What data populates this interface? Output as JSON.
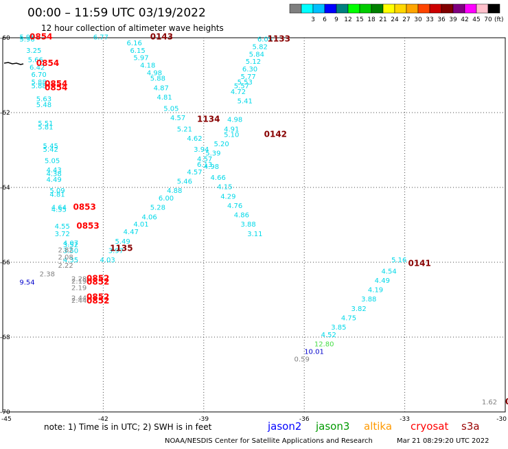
{
  "title": "00:00 – 11:59 UTC 03/19/2022",
  "subtitle": "12 hour collection of altimeter wave heights",
  "color_scale": {
    "unit": "(ft)",
    "swatches": [
      {
        "label": "",
        "color": "#7f7f7f"
      },
      {
        "label": "3",
        "color": "#00ffff"
      },
      {
        "label": "6",
        "color": "#00bfff"
      },
      {
        "label": "9",
        "color": "#0000ff"
      },
      {
        "label": "12",
        "color": "#008080"
      },
      {
        "label": "15",
        "color": "#00ff00"
      },
      {
        "label": "18",
        "color": "#00cc00"
      },
      {
        "label": "21",
        "color": "#008000"
      },
      {
        "label": "24",
        "color": "#ffff00"
      },
      {
        "label": "27",
        "color": "#ffd700"
      },
      {
        "label": "30",
        "color": "#ffa500"
      },
      {
        "label": "33",
        "color": "#ff4500"
      },
      {
        "label": "36",
        "color": "#cc0000"
      },
      {
        "label": "39",
        "color": "#800000"
      },
      {
        "label": "42",
        "color": "#800080"
      },
      {
        "label": "45",
        "color": "#ff00ff"
      },
      {
        "label": "70",
        "color": "#ffc0cb"
      },
      {
        "label": "",
        "color": "#000000"
      }
    ]
  },
  "axes": {
    "lon_ticks": [
      "-45",
      "-42",
      "-39",
      "-36",
      "-33",
      "-30"
    ],
    "lat_ticks": [
      "-60",
      "-62",
      "-64",
      "-66",
      "-68",
      "-70"
    ],
    "lon_range": [
      -45,
      -30
    ],
    "lat_range": [
      -70,
      -60
    ],
    "grid": true
  },
  "map": {
    "observations": [
      {
        "lon": -44.5,
        "lat": -60.05,
        "text": "5.96",
        "color": "#00d8e8"
      },
      {
        "lon": -44.5,
        "lat": -60.1,
        "text": "5.96",
        "color": "#00d8e8"
      },
      {
        "lon": -44.3,
        "lat": -60.4,
        "text": "3.25",
        "color": "#00d8e8"
      },
      {
        "lon": -44.25,
        "lat": -60.65,
        "text": "5.66",
        "color": "#00d8e8"
      },
      {
        "lon": -44.2,
        "lat": -60.85,
        "text": "6.42",
        "color": "#00d8e8"
      },
      {
        "lon": -44.15,
        "lat": -61.05,
        "text": "6.70",
        "color": "#00d8e8"
      },
      {
        "lon": -44.15,
        "lat": -61.25,
        "text": "5.88",
        "color": "#00d8e8"
      },
      {
        "lon": -44.15,
        "lat": -61.35,
        "text": "5.88",
        "color": "#00d8e8"
      },
      {
        "lon": -44.0,
        "lat": -61.7,
        "text": "5.63",
        "color": "#00d8e8"
      },
      {
        "lon": -44.0,
        "lat": -61.85,
        "text": "5.48",
        "color": "#00d8e8"
      },
      {
        "lon": -43.95,
        "lat": -62.35,
        "text": "5.51",
        "color": "#00d8e8"
      },
      {
        "lon": -43.95,
        "lat": -62.45,
        "text": "5.81",
        "color": "#00d8e8"
      },
      {
        "lon": -43.8,
        "lat": -62.95,
        "text": "5.45",
        "color": "#00d8e8"
      },
      {
        "lon": -43.8,
        "lat": -63.05,
        "text": "5.42",
        "color": "#00d8e8"
      },
      {
        "lon": -43.75,
        "lat": -63.35,
        "text": "5.05",
        "color": "#00d8e8"
      },
      {
        "lon": -43.7,
        "lat": -63.6,
        "text": "4.43",
        "color": "#00d8e8"
      },
      {
        "lon": -43.7,
        "lat": -63.7,
        "text": "4.38",
        "color": "#00d8e8"
      },
      {
        "lon": -43.7,
        "lat": -63.85,
        "text": "4.49",
        "color": "#00d8e8"
      },
      {
        "lon": -43.6,
        "lat": -64.15,
        "text": "5.09",
        "color": "#00d8e8"
      },
      {
        "lon": -43.6,
        "lat": -64.25,
        "text": "4.81",
        "color": "#00d8e8"
      },
      {
        "lon": -43.55,
        "lat": -64.6,
        "text": "4.64",
        "color": "#00d8e8"
      },
      {
        "lon": -43.55,
        "lat": -64.65,
        "text": "4.55",
        "color": "#00d8e8"
      },
      {
        "lon": -43.45,
        "lat": -65.1,
        "text": "4.55",
        "color": "#00d8e8"
      },
      {
        "lon": -43.45,
        "lat": -65.3,
        "text": "3.72",
        "color": "#00d8e8"
      },
      {
        "lon": -43.2,
        "lat": -65.55,
        "text": "4.07",
        "color": "#00d8e8"
      },
      {
        "lon": -43.2,
        "lat": -65.6,
        "text": "3.52",
        "color": "#00d8e8"
      },
      {
        "lon": -43.2,
        "lat": -65.75,
        "text": "3.50",
        "color": "#00d8e8"
      },
      {
        "lon": -43.2,
        "lat": -66.0,
        "text": "4.35",
        "color": "#00d8e8"
      },
      {
        "lon": -44.5,
        "lat": -66.6,
        "text": "9.54",
        "color": "#0000cc"
      },
      {
        "lon": -43.35,
        "lat": -65.93,
        "text": "2.08",
        "color": "#808080"
      },
      {
        "lon": -43.35,
        "lat": -66.15,
        "text": "2.22",
        "color": "#808080"
      },
      {
        "lon": -43.35,
        "lat": -65.73,
        "text": "2.82",
        "color": "#808080"
      },
      {
        "lon": -43.9,
        "lat": -66.38,
        "text": "2.38",
        "color": "#808080"
      },
      {
        "lon": -42.95,
        "lat": -66.5,
        "text": "2.28",
        "color": "#808080"
      },
      {
        "lon": -42.95,
        "lat": -66.57,
        "text": "2.19",
        "color": "#808080"
      },
      {
        "lon": -42.95,
        "lat": -66.74,
        "text": "2.19",
        "color": "#808080"
      },
      {
        "lon": -42.95,
        "lat": -67.02,
        "text": "2.44",
        "color": "#808080"
      },
      {
        "lon": -42.95,
        "lat": -67.08,
        "text": "2.44",
        "color": "#808080"
      },
      {
        "lon": -42.3,
        "lat": -60.05,
        "text": "6.77",
        "color": "#00d8e8"
      },
      {
        "lon": -41.3,
        "lat": -60.2,
        "text": "6.16",
        "color": "#00d8e8"
      },
      {
        "lon": -41.2,
        "lat": -60.4,
        "text": "6.15",
        "color": "#00d8e8"
      },
      {
        "lon": -41.1,
        "lat": -60.6,
        "text": "5.97",
        "color": "#00d8e8"
      },
      {
        "lon": -40.9,
        "lat": -60.8,
        "text": "4.18",
        "color": "#00d8e8"
      },
      {
        "lon": -40.7,
        "lat": -61.0,
        "text": "4.98",
        "color": "#00d8e8"
      },
      {
        "lon": -40.6,
        "lat": -61.15,
        "text": "5.88",
        "color": "#00d8e8"
      },
      {
        "lon": -40.5,
        "lat": -61.4,
        "text": "4.87",
        "color": "#00d8e8"
      },
      {
        "lon": -40.4,
        "lat": -61.65,
        "text": "4.81",
        "color": "#00d8e8"
      },
      {
        "lon": -40.2,
        "lat": -61.95,
        "text": "5.05",
        "color": "#00d8e8"
      },
      {
        "lon": -40.0,
        "lat": -62.2,
        "text": "4.57",
        "color": "#00d8e8"
      },
      {
        "lon": -39.8,
        "lat": -62.5,
        "text": "5.21",
        "color": "#00d8e8"
      },
      {
        "lon": -39.5,
        "lat": -62.75,
        "text": "4.62",
        "color": "#00d8e8"
      },
      {
        "lon": -39.3,
        "lat": -63.05,
        "text": "3.94",
        "color": "#00d8e8"
      },
      {
        "lon": -39.2,
        "lat": -63.3,
        "text": "4.57",
        "color": "#00d8e8"
      },
      {
        "lon": -39.0,
        "lat": -63.5,
        "text": "4.98",
        "color": "#00d8e8"
      },
      {
        "lon": -38.8,
        "lat": -63.8,
        "text": "4.66",
        "color": "#00d8e8"
      },
      {
        "lon": -38.6,
        "lat": -64.05,
        "text": "4.15",
        "color": "#00d8e8"
      },
      {
        "lon": -38.5,
        "lat": -64.3,
        "text": "4.29",
        "color": "#00d8e8"
      },
      {
        "lon": -38.3,
        "lat": -64.55,
        "text": "4.76",
        "color": "#00d8e8"
      },
      {
        "lon": -38.1,
        "lat": -64.8,
        "text": "4.86",
        "color": "#00d8e8"
      },
      {
        "lon": -37.9,
        "lat": -65.05,
        "text": "3.88",
        "color": "#00d8e8"
      },
      {
        "lon": -37.7,
        "lat": -65.3,
        "text": "3.11",
        "color": "#00d8e8"
      },
      {
        "lon": -37.4,
        "lat": -60.1,
        "text": "6.05",
        "color": "#00d8e8"
      },
      {
        "lon": -37.55,
        "lat": -60.3,
        "text": "5.82",
        "color": "#00d8e8"
      },
      {
        "lon": -37.65,
        "lat": -60.5,
        "text": "5.84",
        "color": "#00d8e8"
      },
      {
        "lon": -37.75,
        "lat": -60.7,
        "text": "5.12",
        "color": "#00d8e8"
      },
      {
        "lon": -37.85,
        "lat": -60.9,
        "text": "6.30",
        "color": "#00d8e8"
      },
      {
        "lon": -37.9,
        "lat": -61.1,
        "text": "5.77",
        "color": "#00d8e8"
      },
      {
        "lon": -38.0,
        "lat": -61.25,
        "text": "5.53",
        "color": "#00d8e8"
      },
      {
        "lon": -38.1,
        "lat": -61.35,
        "text": "5.57",
        "color": "#00d8e8"
      },
      {
        "lon": -38.2,
        "lat": -61.5,
        "text": "4.72",
        "color": "#00d8e8"
      },
      {
        "lon": -38.0,
        "lat": -61.75,
        "text": "5.41",
        "color": "#00d8e8"
      },
      {
        "lon": -38.3,
        "lat": -62.25,
        "text": "4.98",
        "color": "#00d8e8"
      },
      {
        "lon": -38.4,
        "lat": -62.5,
        "text": "4.91",
        "color": "#00d8e8"
      },
      {
        "lon": -38.4,
        "lat": -62.65,
        "text": "5.10",
        "color": "#00d8e8"
      },
      {
        "lon": -38.7,
        "lat": -62.9,
        "text": "5.20",
        "color": "#00d8e8"
      },
      {
        "lon": -38.95,
        "lat": -63.15,
        "text": "5.39",
        "color": "#00d8e8"
      },
      {
        "lon": -39.2,
        "lat": -63.45,
        "text": "6.13",
        "color": "#00d8e8"
      },
      {
        "lon": -39.5,
        "lat": -63.65,
        "text": "4.57",
        "color": "#00d8e8"
      },
      {
        "lon": -39.8,
        "lat": -63.9,
        "text": "5.46",
        "color": "#00d8e8"
      },
      {
        "lon": -40.1,
        "lat": -64.15,
        "text": "4.88",
        "color": "#00d8e8"
      },
      {
        "lon": -40.35,
        "lat": -64.35,
        "text": "6.00",
        "color": "#00d8e8"
      },
      {
        "lon": -40.6,
        "lat": -64.6,
        "text": "5.28",
        "color": "#00d8e8"
      },
      {
        "lon": -40.85,
        "lat": -64.85,
        "text": "4.06",
        "color": "#00d8e8"
      },
      {
        "lon": -41.1,
        "lat": -65.05,
        "text": "4.01",
        "color": "#00d8e8"
      },
      {
        "lon": -41.4,
        "lat": -65.25,
        "text": "4.47",
        "color": "#00d8e8"
      },
      {
        "lon": -41.65,
        "lat": -65.5,
        "text": "5.49",
        "color": "#00d8e8"
      },
      {
        "lon": -41.85,
        "lat": -65.75,
        "text": "3.97",
        "color": "#00d8e8"
      },
      {
        "lon": -42.1,
        "lat": -66.0,
        "text": "4.03",
        "color": "#00d8e8"
      },
      {
        "lon": -33.4,
        "lat": -66.0,
        "text": "5.16",
        "color": "#00d8e8"
      },
      {
        "lon": -33.7,
        "lat": -66.3,
        "text": "4.54",
        "color": "#00d8e8"
      },
      {
        "lon": -33.9,
        "lat": -66.55,
        "text": "4.49",
        "color": "#00d8e8"
      },
      {
        "lon": -34.1,
        "lat": -66.8,
        "text": "4.19",
        "color": "#00d8e8"
      },
      {
        "lon": -34.3,
        "lat": -67.05,
        "text": "3.88",
        "color": "#00d8e8"
      },
      {
        "lon": -34.6,
        "lat": -67.3,
        "text": "3.82",
        "color": "#00d8e8"
      },
      {
        "lon": -34.9,
        "lat": -67.55,
        "text": "4.75",
        "color": "#00d8e8"
      },
      {
        "lon": -35.2,
        "lat": -67.8,
        "text": "3.85",
        "color": "#00d8e8"
      },
      {
        "lon": -35.5,
        "lat": -68.0,
        "text": "4.52",
        "color": "#00d8e8"
      },
      {
        "lon": -35.7,
        "lat": -68.25,
        "text": "12.80",
        "color": "#44dd44"
      },
      {
        "lon": -36.0,
        "lat": -68.45,
        "text": "10.01",
        "color": "#0000cc"
      },
      {
        "lon": -36.3,
        "lat": -68.65,
        "text": "0.59",
        "color": "#808080"
      },
      {
        "lon": -30.7,
        "lat": -69.8,
        "text": "1.62",
        "color": "#808080"
      }
    ],
    "times": [
      {
        "lon": -44.2,
        "lat": -60.05,
        "text": "0854",
        "color": "#ff0000"
      },
      {
        "lon": -44.0,
        "lat": -60.75,
        "text": "0854",
        "color": "#ff0000"
      },
      {
        "lon": -43.75,
        "lat": -61.3,
        "text": "0854",
        "color": "#ff0000"
      },
      {
        "lon": -43.75,
        "lat": -61.4,
        "text": "0854",
        "color": "#ff0000"
      },
      {
        "lon": -42.9,
        "lat": -64.6,
        "text": "0853",
        "color": "#ff0000"
      },
      {
        "lon": -42.8,
        "lat": -65.1,
        "text": "0853",
        "color": "#ff0000"
      },
      {
        "lon": -42.5,
        "lat": -66.5,
        "text": "0852",
        "color": "#ff0000"
      },
      {
        "lon": -42.5,
        "lat": -66.6,
        "text": "0852",
        "color": "#ff0000"
      },
      {
        "lon": -42.5,
        "lat": -67.0,
        "text": "0852",
        "color": "#ff0000"
      },
      {
        "lon": -42.5,
        "lat": -67.1,
        "text": "0852",
        "color": "#ff0000"
      },
      {
        "lon": -40.6,
        "lat": -60.05,
        "text": "0143",
        "color": "#880000"
      },
      {
        "lon": -37.1,
        "lat": -60.1,
        "text": "1133",
        "color": "#880000"
      },
      {
        "lon": -39.2,
        "lat": -62.25,
        "text": "1134",
        "color": "#880000"
      },
      {
        "lon": -41.8,
        "lat": -65.7,
        "text": "1135",
        "color": "#880000"
      },
      {
        "lon": -37.2,
        "lat": -62.65,
        "text": "0142",
        "color": "#880000"
      },
      {
        "lon": -32.9,
        "lat": -66.1,
        "text": "0141",
        "color": "#880000"
      },
      {
        "lon": -30.0,
        "lat": -69.8,
        "text": "0",
        "color": "#880000"
      }
    ]
  },
  "note": "note:  1) Time is in UTC; 2) SWH is in feet",
  "satellites": [
    {
      "name": "jason2",
      "color": "#0000ff"
    },
    {
      "name": "jason3",
      "color": "#009900"
    },
    {
      "name": "altika",
      "color": "#ff9900"
    },
    {
      "name": "cryosat",
      "color": "#ff0000"
    },
    {
      "name": "s3a",
      "color": "#990000"
    }
  ],
  "footer": {
    "credit": "NOAA/NESDIS Center for Satellite Applications and Research",
    "timestamp": "Mar 21 08:29:20 UTC 2022"
  }
}
